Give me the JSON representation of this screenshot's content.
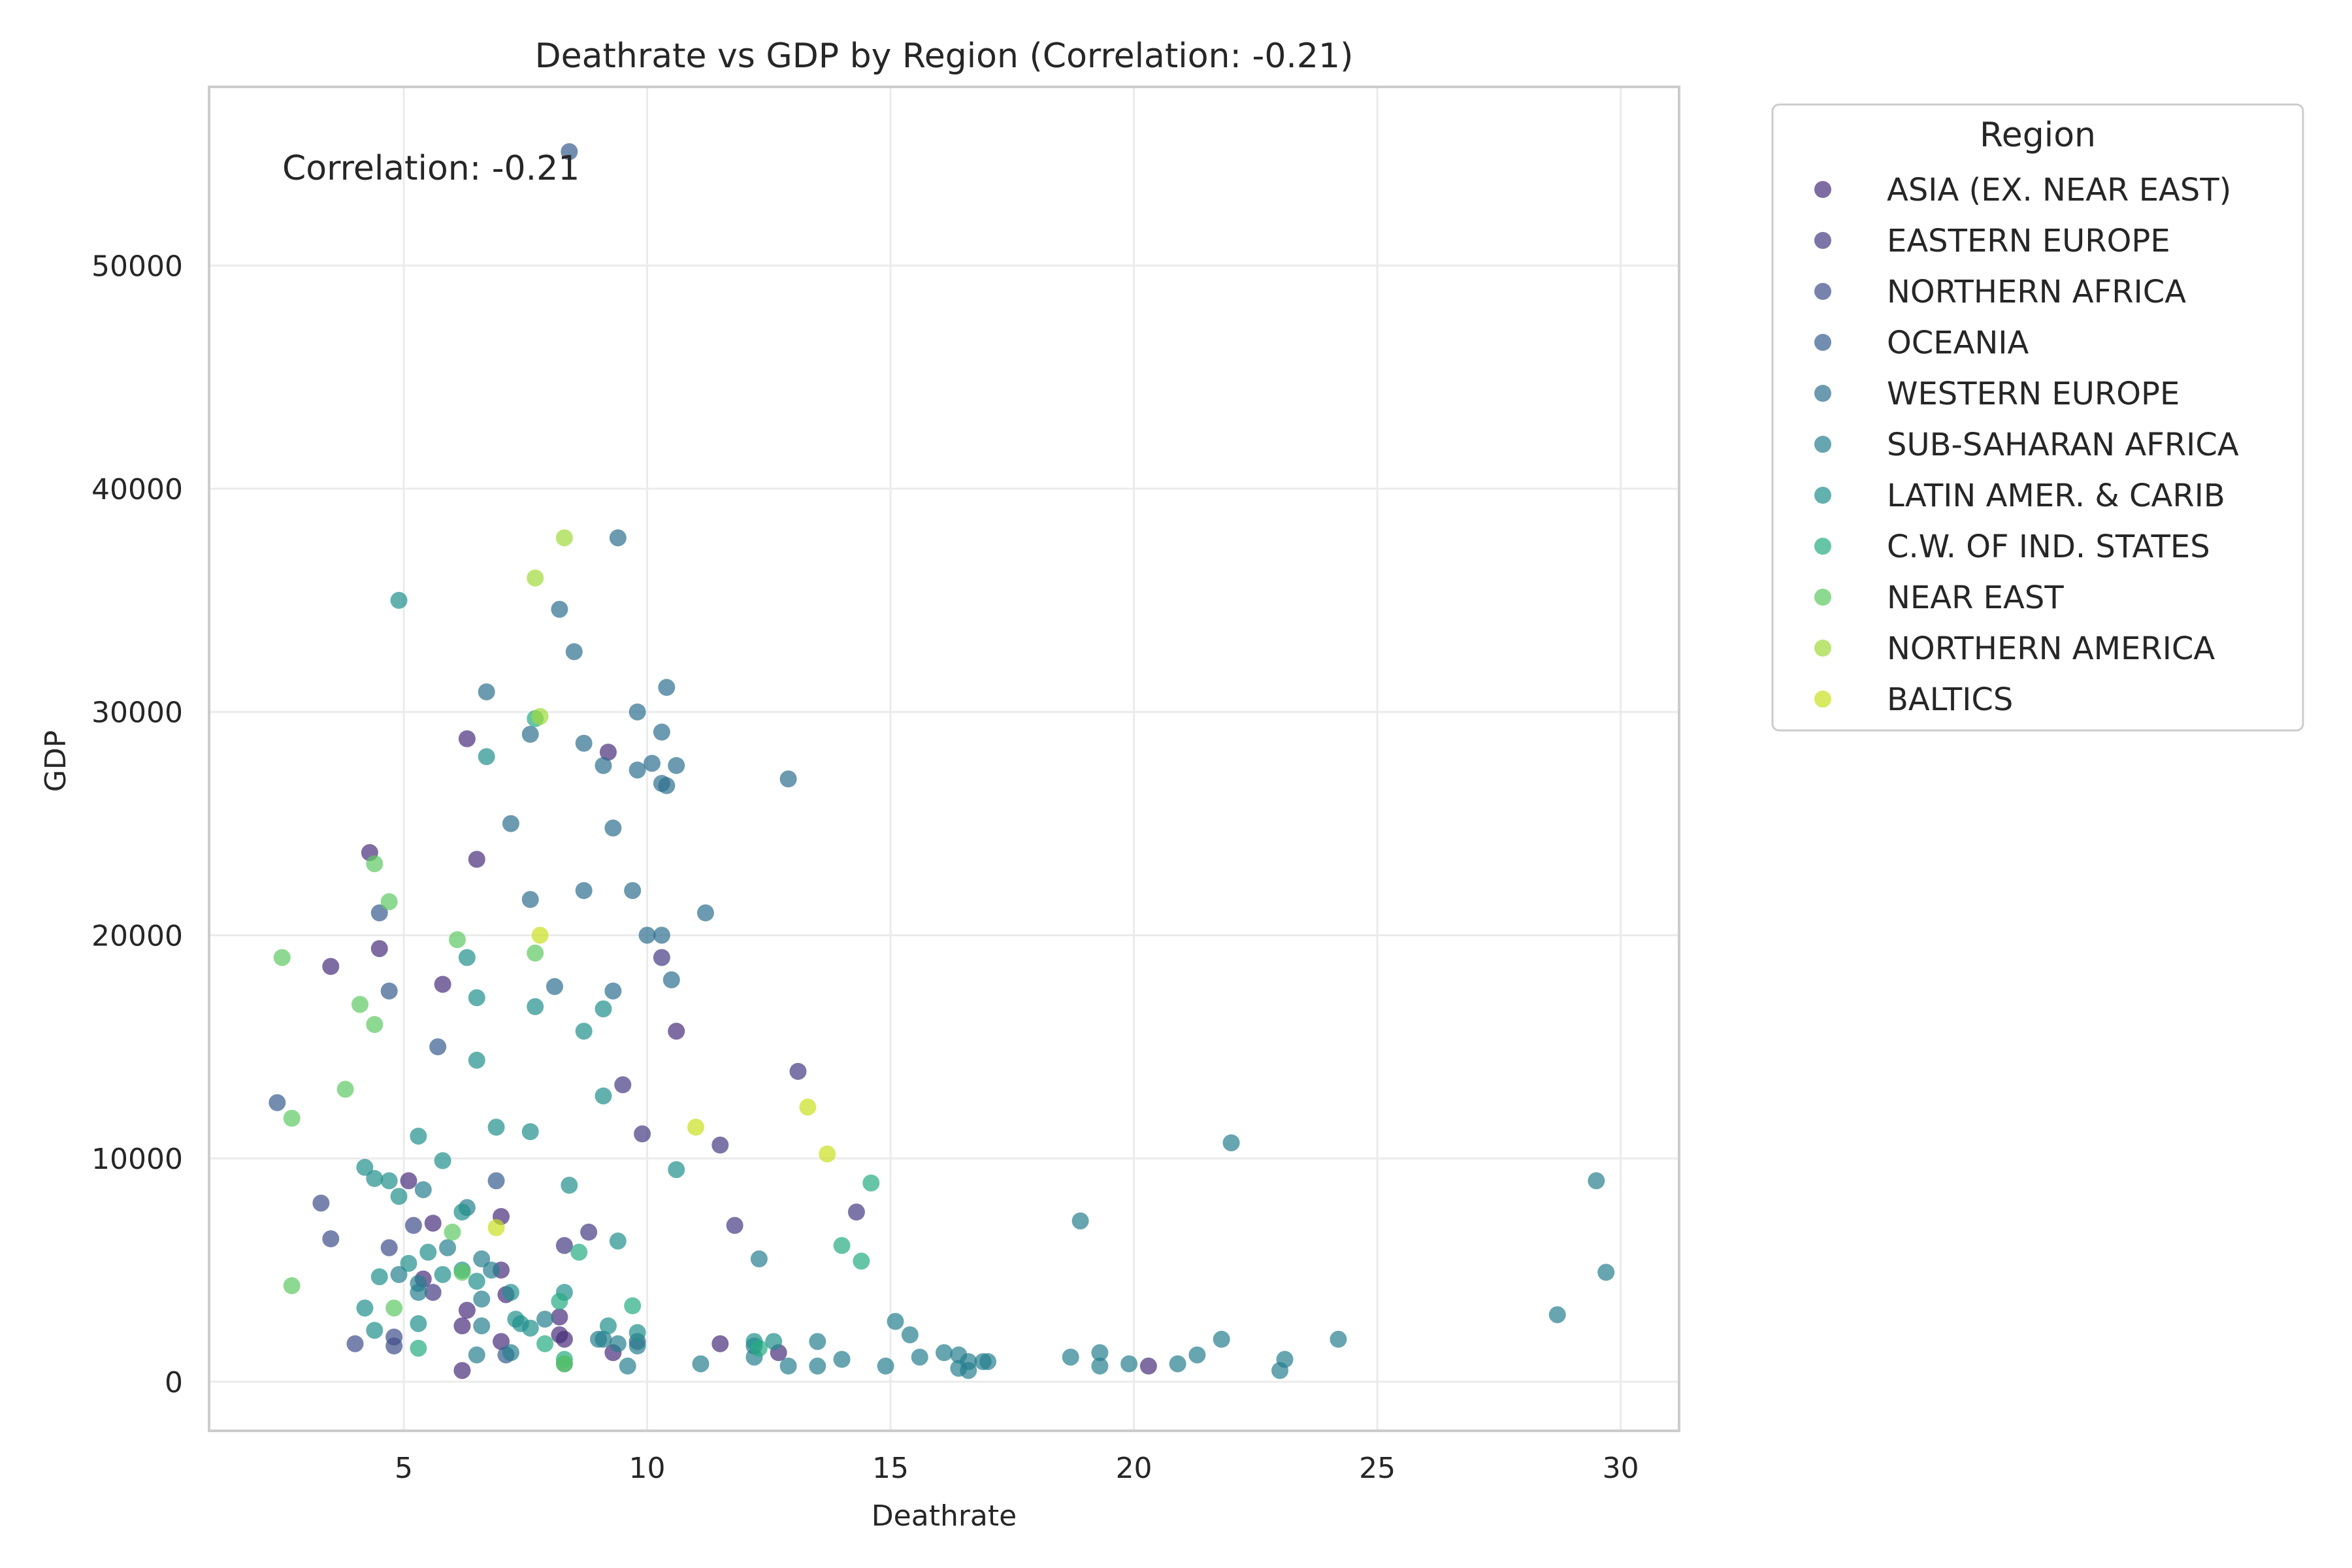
{
  "chart_data": {
    "type": "scatter",
    "title": "Deathrate vs GDP by Region (Correlation: -0.21)",
    "xlabel": "Deathrate",
    "ylabel": "GDP",
    "xlim": [
      1,
      31.2
    ],
    "ylim": [
      -2200,
      58000
    ],
    "xticks": [
      5,
      10,
      15,
      20,
      25,
      30
    ],
    "yticks": [
      0,
      10000,
      20000,
      30000,
      40000,
      50000
    ],
    "grid": true,
    "annotation": "Correlation: -0.21",
    "legend": {
      "title": "Region",
      "placement": "outside-top-right"
    },
    "series": [
      {
        "name": "ASIA (EX. NEAR EAST)",
        "color": "#472D7B",
        "points": [
          [
            4.3,
            23700
          ],
          [
            3.5,
            18600
          ],
          [
            4.5,
            19400
          ],
          [
            5.1,
            9000
          ],
          [
            5.6,
            7100
          ],
          [
            5.4,
            4600
          ],
          [
            5.8,
            17800
          ],
          [
            6.3,
            28800
          ],
          [
            6.5,
            23400
          ],
          [
            6.2,
            2500
          ],
          [
            6.3,
            3200
          ],
          [
            7.0,
            7400
          ],
          [
            7.0,
            1800
          ],
          [
            7.1,
            3900
          ],
          [
            7.0,
            5000
          ],
          [
            8.2,
            2900
          ],
          [
            8.3,
            1900
          ],
          [
            8.2,
            2100
          ],
          [
            9.2,
            28200
          ],
          [
            9.3,
            1300
          ],
          [
            10.6,
            15700
          ],
          [
            11.5,
            1700
          ],
          [
            12.7,
            1300
          ],
          [
            20.3,
            700
          ],
          [
            6.2,
            500
          ]
        ]
      },
      {
        "name": "EASTERN EUROPE",
        "color": "#443A83",
        "points": [
          [
            10.3,
            19000
          ],
          [
            9.5,
            13300
          ],
          [
            9.9,
            11100
          ],
          [
            13.1,
            13900
          ],
          [
            14.3,
            7600
          ],
          [
            11.5,
            10600
          ],
          [
            11.8,
            7000
          ],
          [
            8.8,
            6700
          ],
          [
            8.3,
            6100
          ],
          [
            5.6,
            4000
          ]
        ]
      },
      {
        "name": "NORTHERN AFRICA",
        "color": "#3F4E8A",
        "points": [
          [
            3.3,
            8000
          ],
          [
            3.5,
            6400
          ],
          [
            4.7,
            6000
          ],
          [
            5.2,
            7000
          ],
          [
            4.8,
            1600
          ],
          [
            4.0,
            1700
          ],
          [
            4.8,
            2000
          ]
        ]
      },
      {
        "name": "OCEANIA",
        "color": "#365C8D",
        "points": [
          [
            8.4,
            55100
          ],
          [
            2.4,
            12500
          ],
          [
            4.5,
            21000
          ],
          [
            4.7,
            17500
          ],
          [
            5.7,
            15000
          ],
          [
            6.9,
            9000
          ],
          [
            7.1,
            1200
          ],
          [
            9.8,
            1800
          ]
        ]
      },
      {
        "name": "WESTERN EUROPE",
        "color": "#2E6F8E",
        "points": [
          [
            9.4,
            37800
          ],
          [
            8.2,
            34600
          ],
          [
            8.5,
            32700
          ],
          [
            6.7,
            30900
          ],
          [
            7.6,
            29000
          ],
          [
            8.7,
            28600
          ],
          [
            9.8,
            30000
          ],
          [
            10.3,
            29100
          ],
          [
            10.4,
            31100
          ],
          [
            9.1,
            27600
          ],
          [
            10.1,
            27700
          ],
          [
            9.8,
            27400
          ],
          [
            10.3,
            26800
          ],
          [
            10.6,
            27600
          ],
          [
            10.4,
            26700
          ],
          [
            12.9,
            27000
          ],
          [
            7.2,
            25000
          ],
          [
            9.3,
            24800
          ],
          [
            8.7,
            22000
          ],
          [
            9.7,
            22000
          ],
          [
            7.6,
            21600
          ],
          [
            10.0,
            20000
          ],
          [
            10.3,
            20000
          ],
          [
            11.2,
            21000
          ],
          [
            10.5,
            18000
          ],
          [
            9.3,
            17500
          ],
          [
            8.1,
            17700
          ]
        ]
      },
      {
        "name": "SUB-SAHARAN AFRICA",
        "color": "#277F8E",
        "points": [
          [
            11.1,
            800
          ],
          [
            12.2,
            1100
          ],
          [
            12.2,
            1600
          ],
          [
            12.9,
            700
          ],
          [
            13.5,
            700
          ],
          [
            13.5,
            1800
          ],
          [
            14.0,
            1000
          ],
          [
            14.9,
            700
          ],
          [
            15.1,
            2700
          ],
          [
            15.4,
            2100
          ],
          [
            15.6,
            1100
          ],
          [
            16.1,
            1300
          ],
          [
            16.4,
            600
          ],
          [
            16.4,
            1200
          ],
          [
            16.6,
            500
          ],
          [
            16.6,
            900
          ],
          [
            16.9,
            900
          ],
          [
            17.0,
            900
          ],
          [
            18.7,
            1100
          ],
          [
            19.3,
            700
          ],
          [
            19.3,
            1300
          ],
          [
            19.9,
            800
          ],
          [
            20.9,
            800
          ],
          [
            21.3,
            1200
          ],
          [
            21.8,
            1900
          ],
          [
            23.0,
            500
          ],
          [
            23.1,
            1000
          ],
          [
            24.2,
            1900
          ],
          [
            28.7,
            3000
          ],
          [
            29.5,
            9000
          ],
          [
            29.7,
            4900
          ],
          [
            22.0,
            10700
          ],
          [
            18.9,
            7200
          ],
          [
            12.3,
            5500
          ],
          [
            9.8,
            1600
          ],
          [
            9.6,
            700
          ],
          [
            9.0,
            1900
          ],
          [
            8.3,
            800
          ],
          [
            7.2,
            1300
          ],
          [
            6.5,
            1200
          ],
          [
            6.6,
            2500
          ],
          [
            6.6,
            3700
          ],
          [
            6.6,
            5500
          ],
          [
            6.8,
            5000
          ],
          [
            5.9,
            6000
          ],
          [
            5.3,
            4400
          ],
          [
            5.3,
            4000
          ],
          [
            4.9,
            4800
          ],
          [
            5.4,
            8600
          ],
          [
            6.3,
            7800
          ],
          [
            7.9,
            2800
          ],
          [
            9.1,
            1900
          ],
          [
            9.4,
            1700
          ]
        ]
      },
      {
        "name": "LATIN AMER. & CARIB",
        "color": "#21908C",
        "points": [
          [
            4.9,
            35000
          ],
          [
            6.7,
            28000
          ],
          [
            6.3,
            19000
          ],
          [
            6.5,
            17200
          ],
          [
            6.5,
            14400
          ],
          [
            6.9,
            11400
          ],
          [
            7.6,
            11200
          ],
          [
            7.7,
            16800
          ],
          [
            8.7,
            15700
          ],
          [
            9.1,
            16700
          ],
          [
            9.1,
            12800
          ],
          [
            9.4,
            6300
          ],
          [
            10.6,
            9500
          ],
          [
            8.4,
            8800
          ],
          [
            5.8,
            9900
          ],
          [
            5.3,
            11000
          ],
          [
            4.2,
            9600
          ],
          [
            4.4,
            9100
          ],
          [
            4.7,
            9000
          ],
          [
            4.9,
            8300
          ],
          [
            6.2,
            7600
          ],
          [
            5.1,
            5300
          ],
          [
            5.3,
            2600
          ],
          [
            4.2,
            3300
          ],
          [
            4.4,
            2300
          ],
          [
            4.5,
            4700
          ],
          [
            5.5,
            5800
          ],
          [
            5.8,
            4800
          ],
          [
            6.2,
            5000
          ],
          [
            6.5,
            4500
          ],
          [
            7.2,
            4000
          ],
          [
            7.3,
            2800
          ],
          [
            7.4,
            2600
          ],
          [
            7.6,
            2400
          ],
          [
            8.3,
            4000
          ],
          [
            9.2,
            2500
          ],
          [
            9.8,
            2200
          ],
          [
            12.2,
            1800
          ],
          [
            12.6,
            1800
          ]
        ]
      },
      {
        "name": "C.W. OF IND. STATES",
        "color": "#27AD81",
        "points": [
          [
            7.7,
            29700
          ],
          [
            8.6,
            5800
          ],
          [
            9.7,
            3400
          ],
          [
            8.2,
            3600
          ],
          [
            7.9,
            1700
          ],
          [
            8.3,
            1000
          ],
          [
            14.0,
            6100
          ],
          [
            14.4,
            5400
          ],
          [
            14.6,
            8900
          ],
          [
            12.3,
            1500
          ],
          [
            5.3,
            1500
          ]
        ]
      },
      {
        "name": "NEAR EAST",
        "color": "#5EC962",
        "points": [
          [
            2.5,
            19000
          ],
          [
            2.7,
            11800
          ],
          [
            2.7,
            4300
          ],
          [
            3.8,
            13100
          ],
          [
            4.1,
            16900
          ],
          [
            4.4,
            23200
          ],
          [
            4.7,
            21500
          ],
          [
            4.4,
            16000
          ],
          [
            6.1,
            19800
          ],
          [
            7.7,
            19200
          ],
          [
            6.2,
            4900
          ],
          [
            6.0,
            6700
          ],
          [
            4.8,
            3300
          ],
          [
            8.3,
            800
          ]
        ]
      },
      {
        "name": "NORTHERN AMERICA",
        "color": "#9FDA3A",
        "points": [
          [
            7.7,
            36000
          ],
          [
            8.3,
            37800
          ],
          [
            7.8,
            29800
          ]
        ]
      },
      {
        "name": "BALTICS",
        "color": "#C9E020",
        "points": [
          [
            11.0,
            11400
          ],
          [
            13.3,
            12300
          ],
          [
            13.7,
            10200
          ],
          [
            6.9,
            6900
          ],
          [
            7.8,
            20000
          ]
        ]
      }
    ]
  }
}
